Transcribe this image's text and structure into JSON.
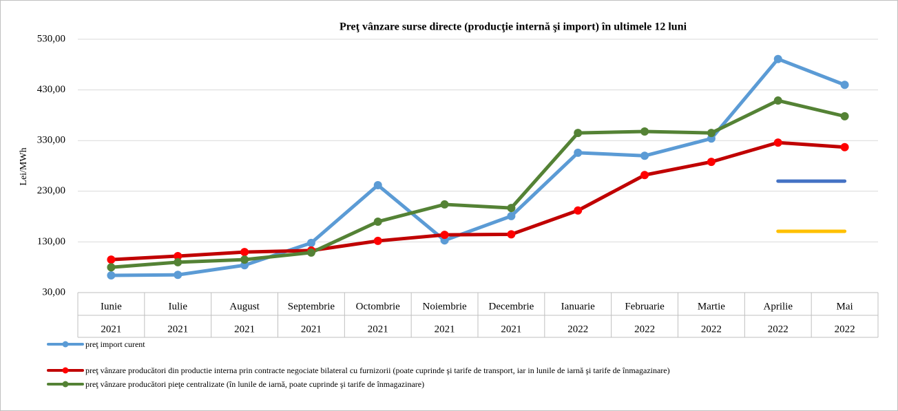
{
  "chart_data": {
    "type": "line",
    "title": "Preţ vânzare surse directe (producţie internă şi import) în ultimele 12 luni",
    "y_label": "Lei/MWh",
    "categories": [
      [
        "Iunie",
        "2021"
      ],
      [
        "Iulie",
        "2021"
      ],
      [
        "August",
        "2021"
      ],
      [
        "Septembrie",
        "2021"
      ],
      [
        "Octombrie",
        "2021"
      ],
      [
        "Noiembrie",
        "2021"
      ],
      [
        "Decembrie",
        "2021"
      ],
      [
        "Ianuarie",
        "2022"
      ],
      [
        "Februarie",
        "2022"
      ],
      [
        "Martie",
        "2022"
      ],
      [
        "Aprilie",
        "2022"
      ],
      [
        "Mai",
        "2022"
      ]
    ],
    "ylim": [
      30,
      530
    ],
    "yticks": [
      {
        "value": 30,
        "label": "30,00"
      },
      {
        "value": 130,
        "label": "130,00"
      },
      {
        "value": 230,
        "label": "230,00"
      },
      {
        "value": 330,
        "label": "330,00"
      },
      {
        "value": 430,
        "label": "430,00"
      },
      {
        "value": 530,
        "label": "530,00"
      }
    ],
    "series": [
      {
        "name": "preţ import curent",
        "color": "#5b9bd5",
        "values": [
          64,
          65,
          84,
          128,
          242,
          133,
          181,
          306,
          300,
          334,
          491,
          440
        ]
      },
      {
        "name": "preţ vânzare producători din productie interna prin contracte negociate bilateral cu furnizorii (poate cuprinde şi tarife de transport, iar in lunile de iarnă şi tarife de înmagazinare)",
        "color": "#c00000",
        "marker_color": "#ff0000",
        "values": [
          95,
          102,
          110,
          113,
          132,
          144,
          145,
          192,
          262,
          288,
          326,
          317
        ]
      },
      {
        "name": "preţ vânzare producători pieţe centralizate (în lunile de iarnă, poate cuprinde şi tarife de înmagazinare)",
        "color": "#548235",
        "values": [
          80,
          90,
          95,
          109,
          170,
          204,
          197,
          345,
          348,
          345,
          409,
          378
        ]
      },
      {
        "color": "#4472c4",
        "marker": false,
        "values": [
          null,
          null,
          null,
          null,
          null,
          null,
          null,
          null,
          null,
          null,
          250,
          250
        ]
      },
      {
        "color": "#ffc000",
        "marker": false,
        "values": [
          null,
          null,
          null,
          null,
          null,
          null,
          null,
          null,
          null,
          null,
          151,
          151
        ]
      }
    ]
  }
}
